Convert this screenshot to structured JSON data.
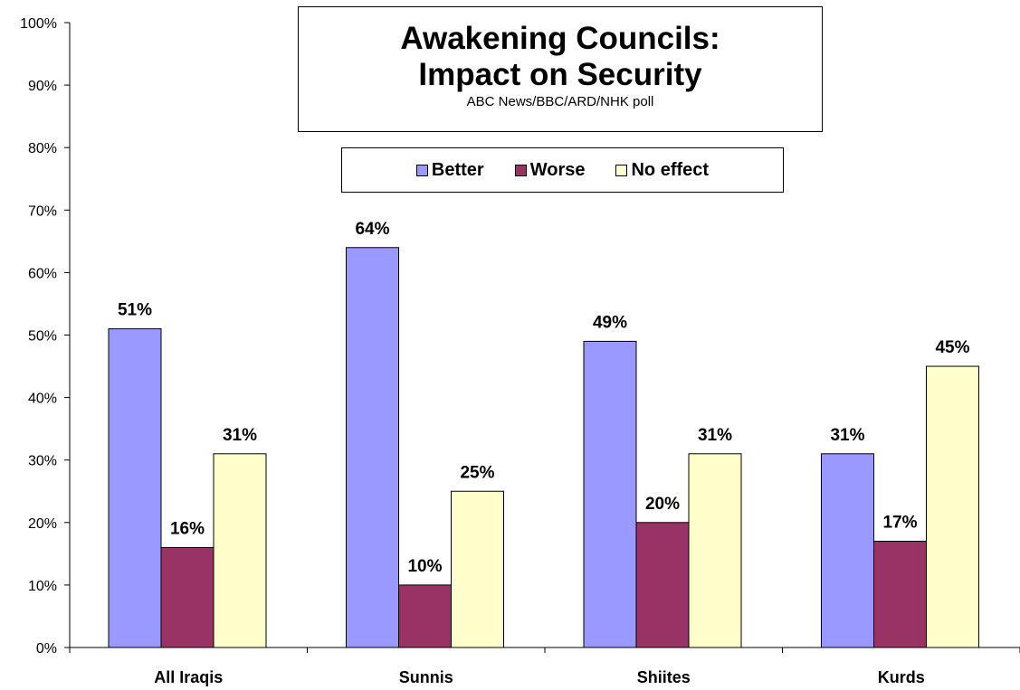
{
  "chart_data": {
    "type": "bar",
    "title": [
      "Awakening Councils:",
      "Impact on Security"
    ],
    "subtitle": "ABC News/BBC/ARD/NHK poll",
    "categories": [
      "All Iraqis",
      "Sunnis",
      "Shiites",
      "Kurds"
    ],
    "series": [
      {
        "name": "Better",
        "values": [
          51,
          64,
          49,
          31
        ],
        "color": "#9999FF"
      },
      {
        "name": "Worse",
        "values": [
          16,
          10,
          20,
          17
        ],
        "color": "#993366"
      },
      {
        "name": "No effect",
        "values": [
          31,
          25,
          31,
          45
        ],
        "color": "#FFFFCC"
      }
    ],
    "data_labels": [
      [
        "51%",
        "64%",
        "49%",
        "31%"
      ],
      [
        "16%",
        "10%",
        "20%",
        "17%"
      ],
      [
        "31%",
        "25%",
        "31%",
        "45%"
      ]
    ],
    "ylim": [
      0,
      100
    ],
    "yticks": [
      0,
      10,
      20,
      30,
      40,
      50,
      60,
      70,
      80,
      90,
      100
    ],
    "ytick_labels": [
      "0%",
      "10%",
      "20%",
      "30%",
      "40%",
      "50%",
      "60%",
      "70%",
      "80%",
      "90%",
      "100%"
    ],
    "xlabel": "",
    "ylabel": "",
    "grid": false,
    "legend_position": "top-center"
  }
}
